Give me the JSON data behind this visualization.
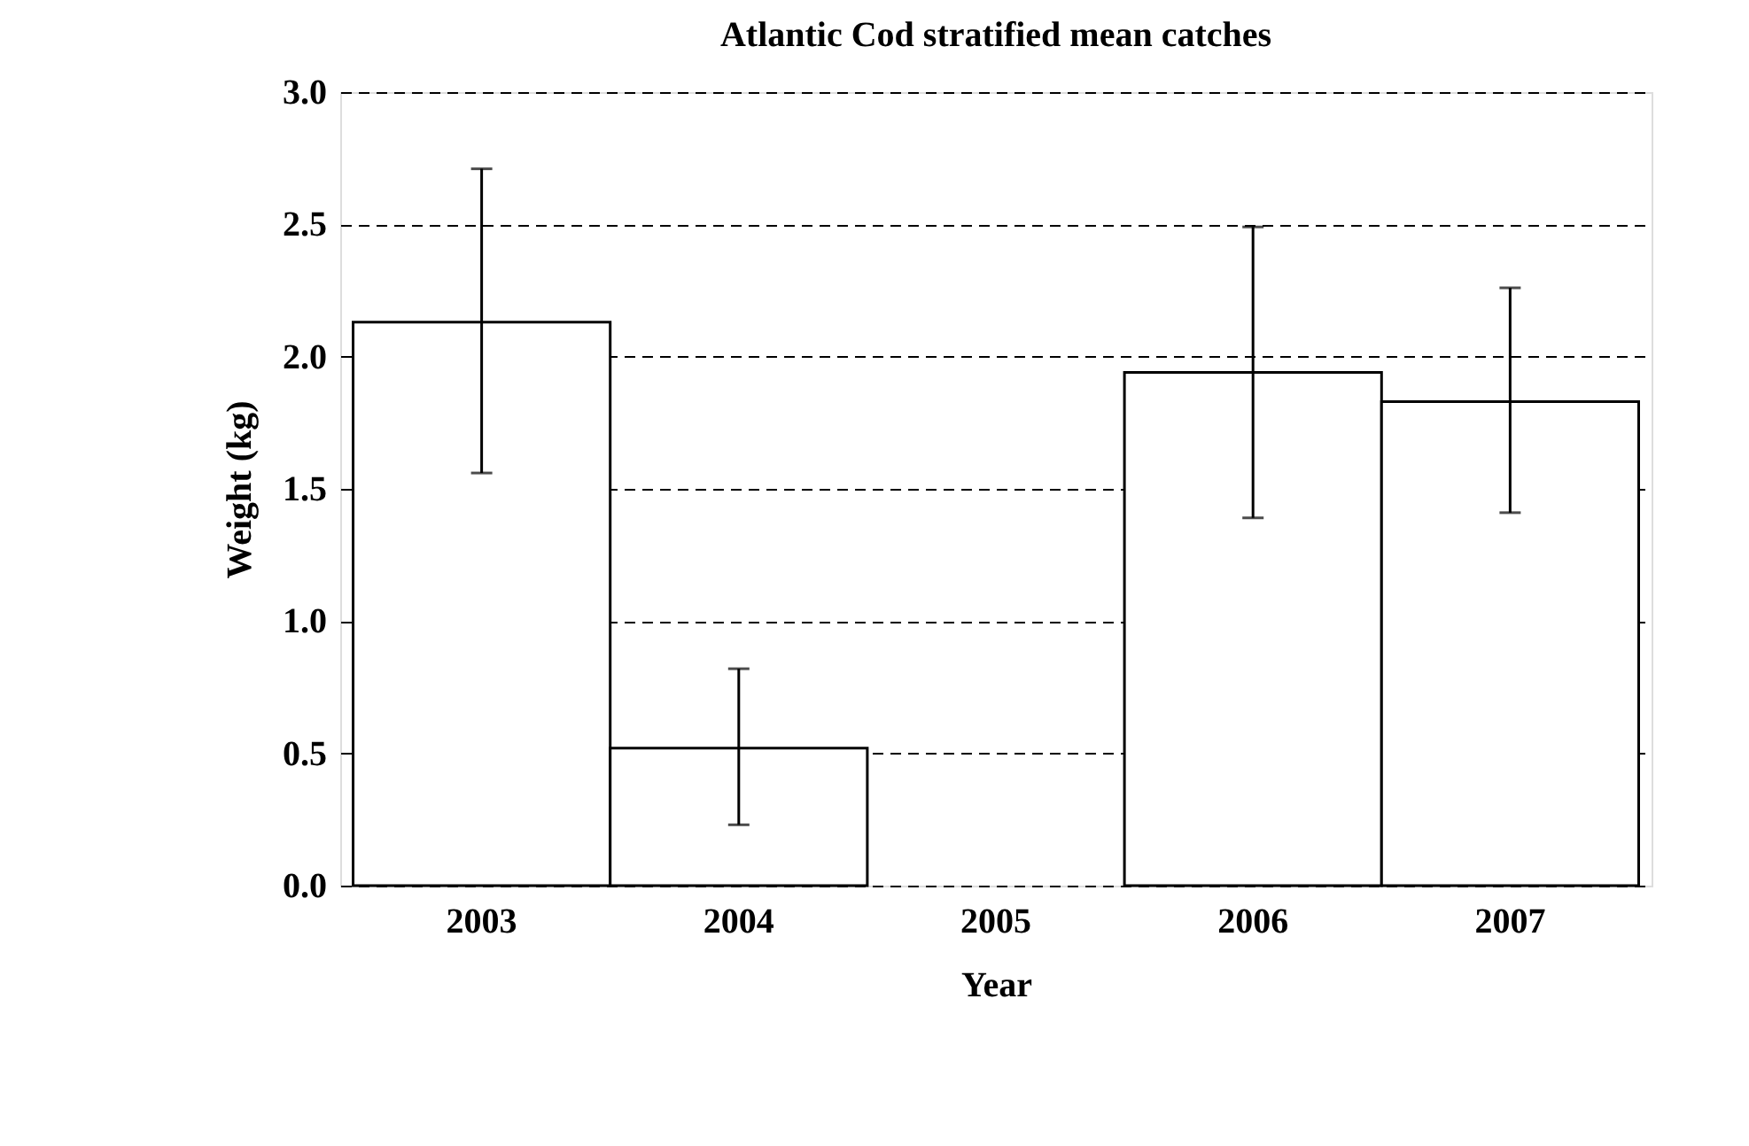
{
  "chart_data": {
    "type": "bar",
    "title": "Atlantic Cod stratified mean catches",
    "xlabel": "Year",
    "ylabel": "Weight (kg)",
    "categories": [
      "2003",
      "2004",
      "2005",
      "2006",
      "2007"
    ],
    "values": [
      2.13,
      0.52,
      null,
      1.94,
      1.83
    ],
    "errors": [
      [
        1.56,
        2.71
      ],
      [
        0.23,
        0.82
      ],
      null,
      [
        1.39,
        2.49
      ],
      [
        1.41,
        2.26
      ]
    ],
    "color": "#ffffff",
    "ylim": [
      0,
      3
    ],
    "yticks": [
      {
        "value": 0,
        "label": "0.0"
      },
      {
        "value": 0.5,
        "label": "0.5"
      },
      {
        "value": 1,
        "label": "1.0"
      },
      {
        "value": 1.5,
        "label": "1.5"
      },
      {
        "value": 2,
        "label": "2.0"
      },
      {
        "value": 2.5,
        "label": "2.5"
      },
      {
        "value": 3,
        "label": "3.0"
      }
    ],
    "grid": "y"
  }
}
